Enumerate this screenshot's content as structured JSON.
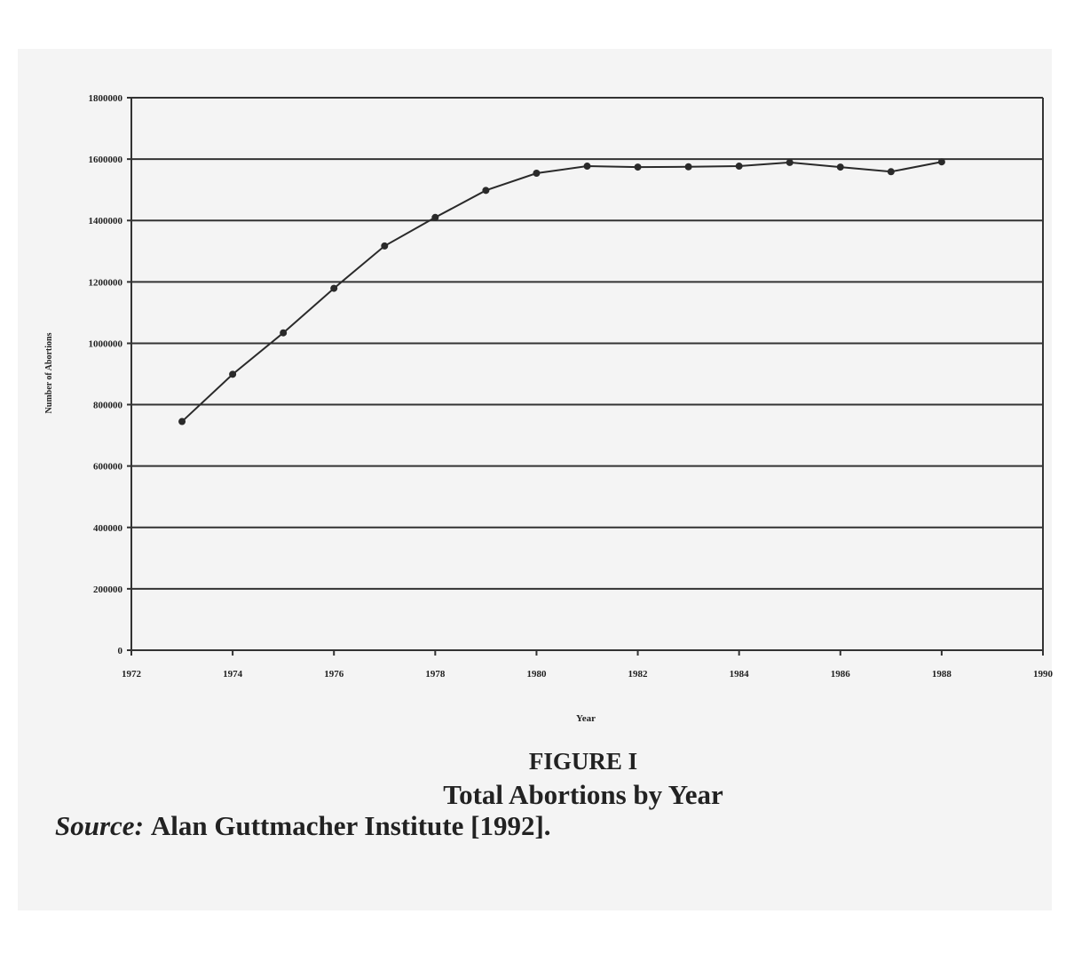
{
  "chart_data": {
    "type": "line",
    "figure_label": "FIGURE I",
    "title": "Total Abortions by Year",
    "source_label": "Source:",
    "source": "Alan Guttmacher Institute [1992].",
    "x_label": "Year",
    "y_label": "Number of Abortions",
    "x": [
      1973,
      1974,
      1975,
      1976,
      1977,
      1978,
      1979,
      1980,
      1981,
      1982,
      1983,
      1984,
      1985,
      1986,
      1987,
      1988
    ],
    "series": [
      {
        "color": "#2a2a2a",
        "values": [
          745000,
          899000,
          1034000,
          1179000,
          1317000,
          1410000,
          1498000,
          1554000,
          1577000,
          1574000,
          1575000,
          1577000,
          1589000,
          1574000,
          1559000,
          1591000
        ]
      }
    ],
    "xlim": [
      1972,
      1990
    ],
    "xticks": [
      1972,
      1974,
      1976,
      1978,
      1980,
      1982,
      1984,
      1986,
      1988,
      1990
    ],
    "ylim": [
      0,
      1800000
    ],
    "yticks": [
      0,
      200000,
      400000,
      600000,
      800000,
      1000000,
      1200000,
      1400000,
      1600000,
      1800000
    ],
    "grid": true
  }
}
